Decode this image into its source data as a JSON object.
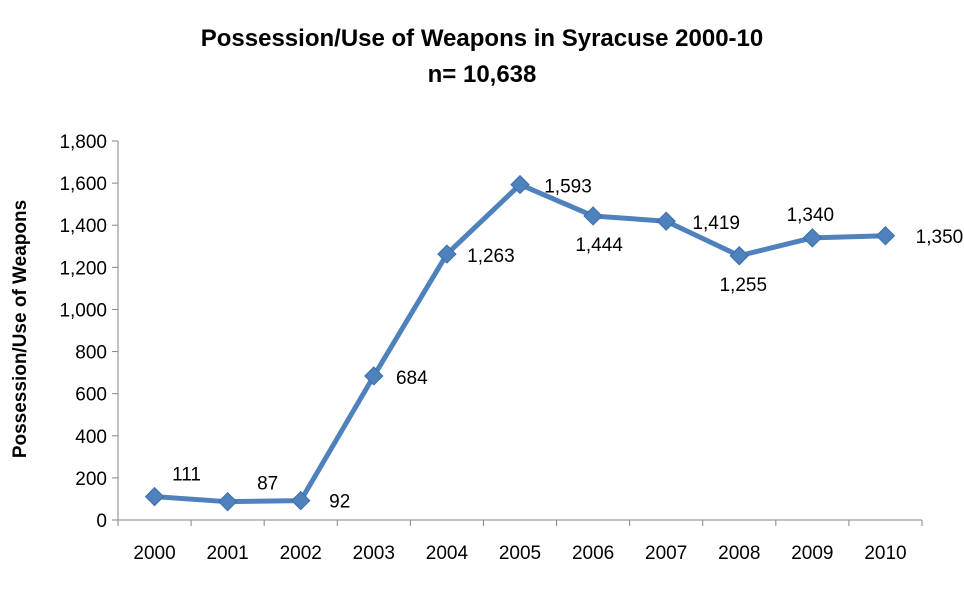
{
  "chart_data": {
    "type": "line",
    "title": "Possession/Use of Weapons in Syracuse 2000-10",
    "subtitle": "n= 10,638",
    "ylabel": "Possession/Use of Weapons",
    "xlabel": "",
    "categories": [
      "2000",
      "2001",
      "2002",
      "2003",
      "2004",
      "2005",
      "2006",
      "2007",
      "2008",
      "2009",
      "2010"
    ],
    "series": [
      {
        "values": [
          111,
          87,
          92,
          684,
          1263,
          1593,
          1444,
          1419,
          1255,
          1340,
          1350
        ],
        "labels": [
          "111",
          "87",
          "92",
          "684",
          "1,263",
          "1,593",
          "1,444",
          "1,419",
          "1,255",
          "1,340",
          "1,350"
        ],
        "color": "#4f81bd",
        "marker": "diamond"
      }
    ],
    "ylim": [
      0,
      1800
    ],
    "yticks": [
      0,
      200,
      400,
      600,
      800,
      1000,
      1200,
      1400,
      1600,
      1800
    ],
    "ytick_labels": [
      "0",
      "200",
      "400",
      "600",
      "800",
      "1,000",
      "1,200",
      "1,400",
      "1,600",
      "1,800"
    ],
    "grid": false,
    "legend": "none"
  }
}
